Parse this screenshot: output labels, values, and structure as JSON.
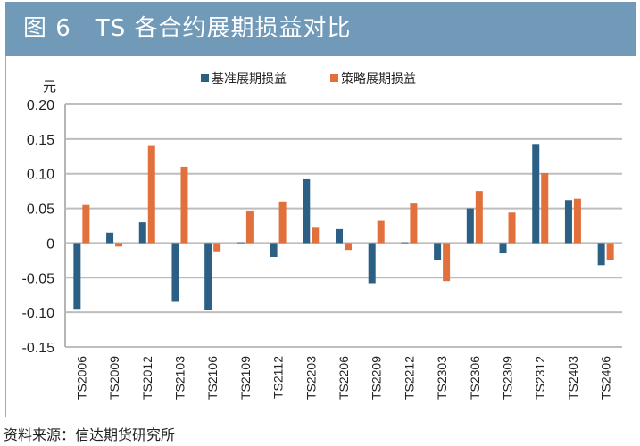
{
  "chart_data": {
    "type": "bar",
    "title": "图 6　TS 各合约展期损益对比",
    "ylabel": "元",
    "ylim": [
      -0.15,
      0.2
    ],
    "yticks": [
      0.2,
      0.15,
      0.1,
      0.05,
      0,
      -0.05,
      -0.1,
      -0.15
    ],
    "ytick_labels": [
      "0.20",
      "0.15",
      "0.10",
      "0.05",
      "0",
      "-0.05",
      "-0.10",
      "-0.15"
    ],
    "grid": true,
    "legend_position": "top",
    "categories": [
      "TS2006",
      "TS2009",
      "TS2012",
      "TS2103",
      "TS2106",
      "TS2109",
      "TS2112",
      "TS2203",
      "TS2206",
      "TS2209",
      "TS2212",
      "TS2303",
      "TS2306",
      "TS2309",
      "TS2312",
      "TS2403",
      "TS2406"
    ],
    "series": [
      {
        "name": "基准展期损益",
        "color": "#2c5f84",
        "values": [
          -0.095,
          0.015,
          0.03,
          -0.085,
          -0.097,
          0.001,
          -0.02,
          0.092,
          0.02,
          -0.058,
          0.001,
          -0.025,
          0.05,
          -0.015,
          0.143,
          0.062,
          -0.032
        ]
      },
      {
        "name": "策略展期损益",
        "color": "#e2703d",
        "values": [
          0.055,
          -0.005,
          0.14,
          0.11,
          -0.012,
          0.047,
          0.06,
          0.022,
          -0.01,
          0.032,
          0.057,
          -0.055,
          0.075,
          0.044,
          0.101,
          0.064,
          -0.025
        ]
      }
    ]
  },
  "header": {
    "title": "图 6　TS 各合约展期损益对比",
    "background": "#7199b8"
  },
  "source": "资料来源：信达期货研究所"
}
